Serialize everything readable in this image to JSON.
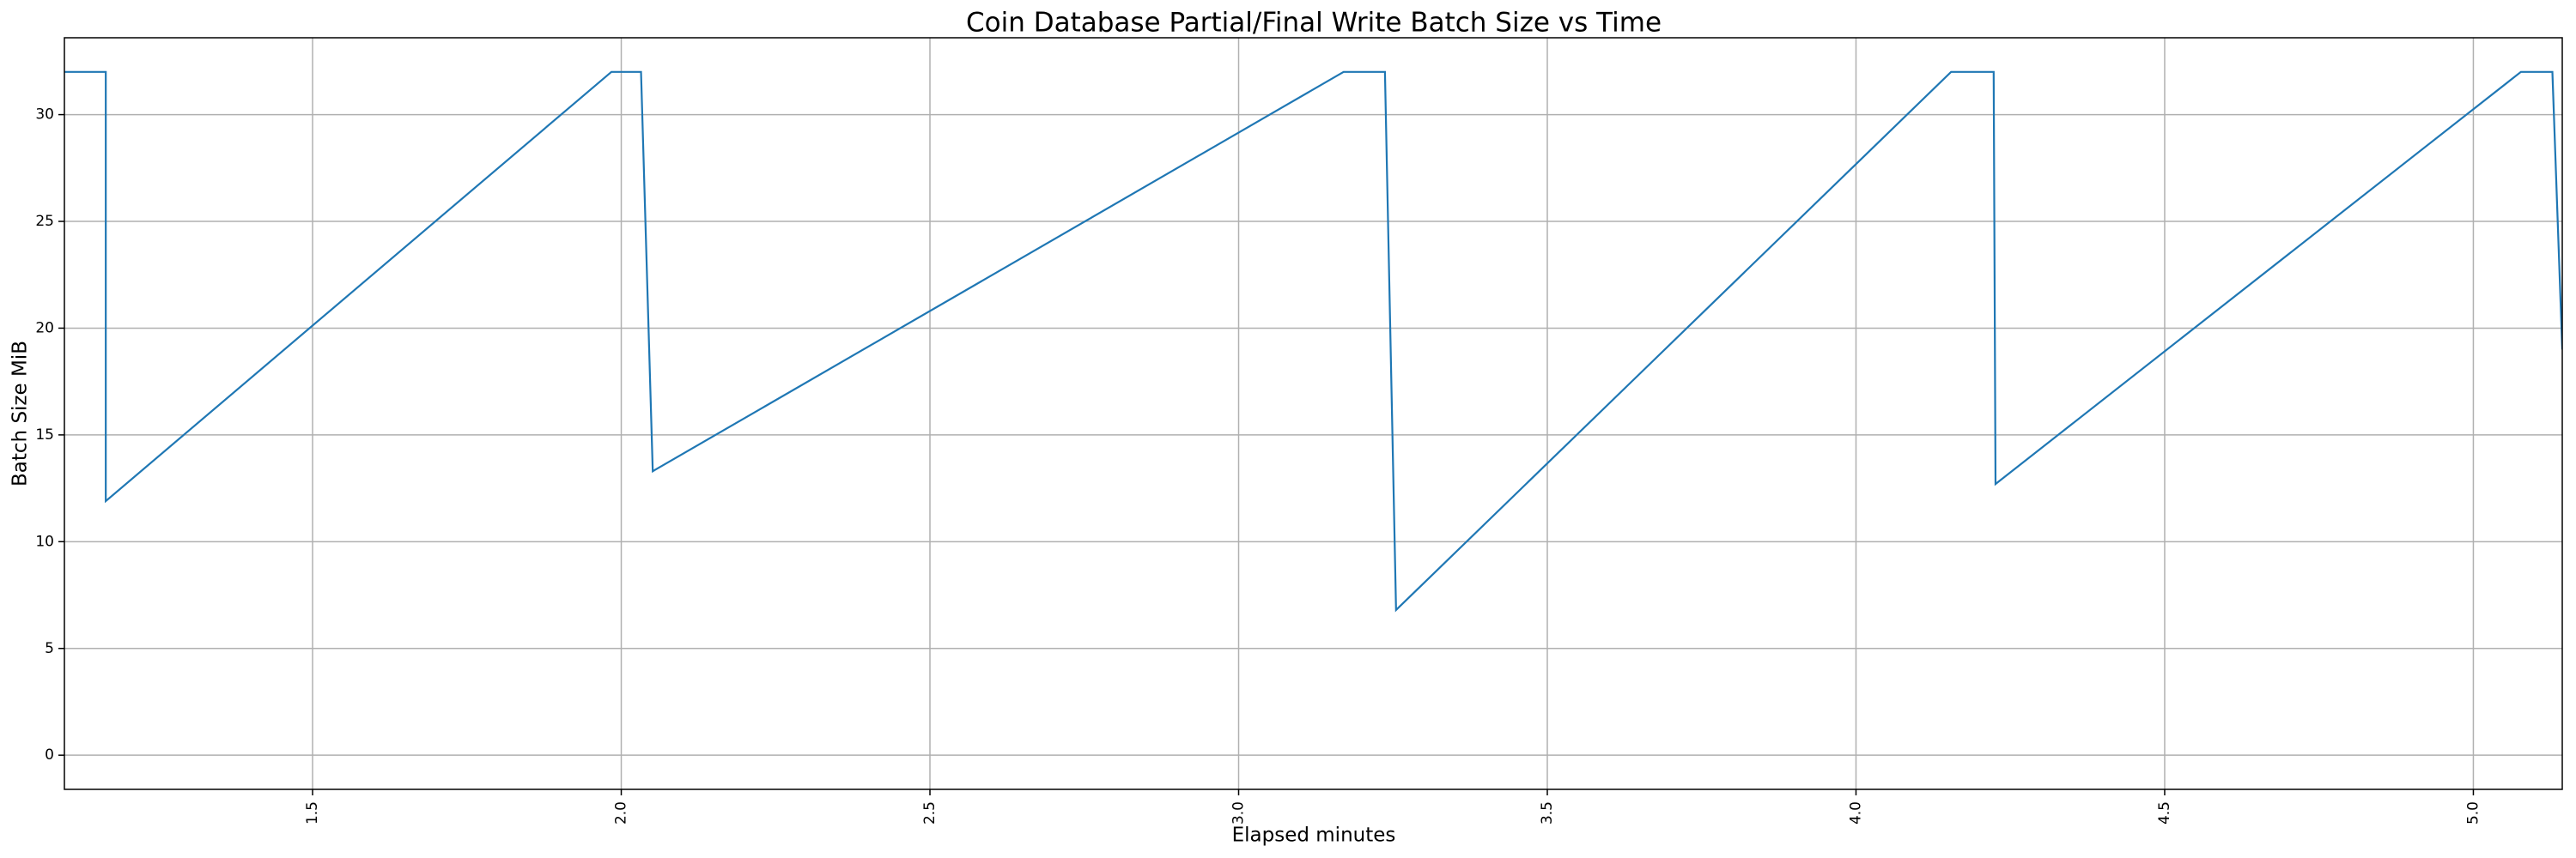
{
  "chart_data": {
    "type": "line",
    "title": "Coin Database Partial/Final Write Batch Size vs Time",
    "x_label": "Elapsed minutes",
    "y_label": "Batch Size MiB",
    "x": [
      1.098,
      1.165,
      1.165,
      1.984,
      2.032,
      2.051,
      3.17,
      3.237,
      3.255,
      4.154,
      4.223,
      4.226,
      5.077,
      5.128,
      5.144
    ],
    "series": [
      {
        "name": "Batch Size MiB",
        "color": "#1f77b4",
        "values": [
          32,
          32,
          11.9,
          32,
          32,
          13.3,
          32,
          32,
          6.8,
          32,
          32,
          12.7,
          32,
          32,
          19
        ]
      }
    ],
    "xlim": [
      1.098,
      5.144
    ],
    "ylim": [
      -1.6,
      33.6
    ],
    "xticks": [
      1.5,
      {
        "value": 2,
        "label": "2.0"
      },
      2.5,
      {
        "value": 3,
        "label": "3.0"
      },
      3.5,
      {
        "value": 4,
        "label": "4.0"
      },
      4.5,
      {
        "value": 5,
        "label": "5.0"
      }
    ],
    "yticks": [
      0,
      5,
      10,
      15,
      20,
      25,
      30
    ],
    "grid": true
  }
}
